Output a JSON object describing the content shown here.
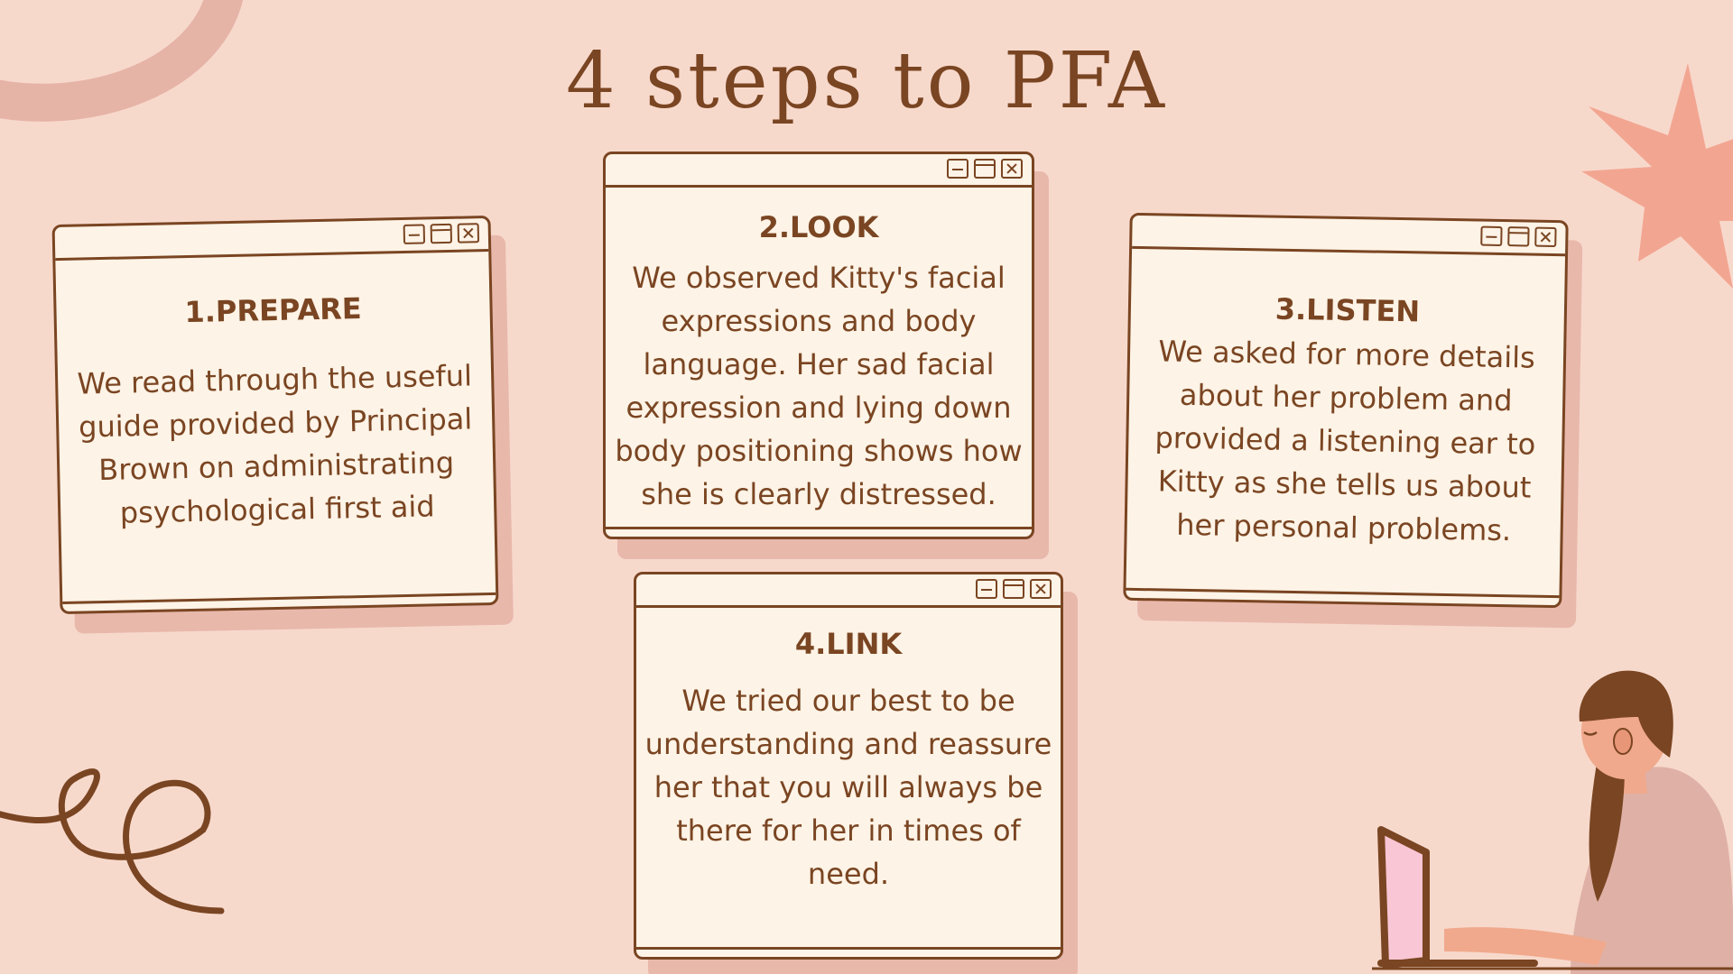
{
  "slide": {
    "title": "4 steps to PFA"
  },
  "steps": [
    {
      "heading": "1.PREPARE",
      "body": "We read through the useful guide provided by Principal Brown on administrating psychological first aid"
    },
    {
      "heading": "2.LOOK",
      "body": "We observed Kitty's facial expressions and body language. Her sad facial expression and lying down body positioning shows how she is clearly distressed."
    },
    {
      "heading": "3.LISTEN",
      "body": "We asked for more details about her problem and provided a listening ear to Kitty as she tells us about her personal problems."
    },
    {
      "heading": "4.LINK",
      "body": "We tried our best to be understanding and reassure her that you will always be there for her in times of need."
    }
  ],
  "icons": {
    "window_controls": [
      "minimize-icon",
      "maximize-icon",
      "close-icon"
    ]
  },
  "colors": {
    "background": "#f7d9cc",
    "text": "#7a4522",
    "window_fill": "#fdf3e6",
    "window_shadow": "#e8b8ab",
    "starburst": "#f2a692",
    "laptop_screen": "#f8c6d4"
  }
}
